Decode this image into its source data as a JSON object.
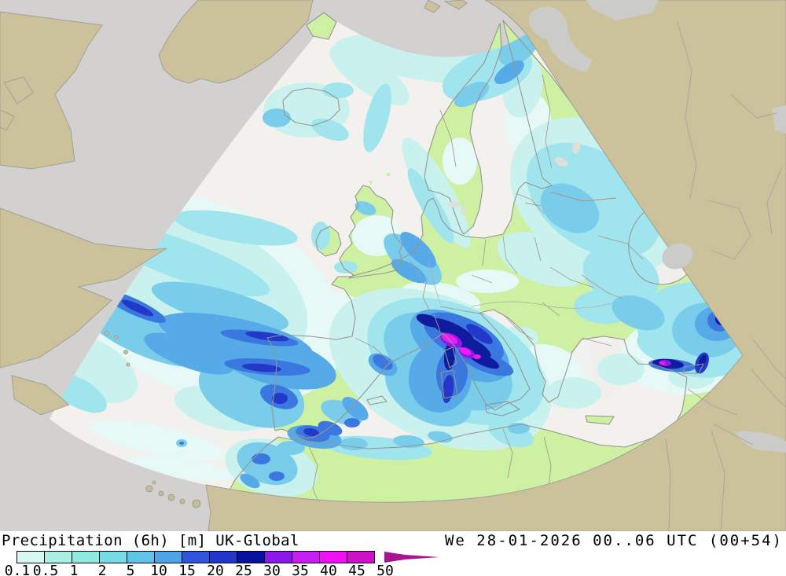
{
  "header": {
    "title_full": "Precipitation (6h) [m] UK-Global",
    "variable": "Precipitation (6h)",
    "units": "[m]",
    "model": "UK-Global"
  },
  "timestamp": {
    "text": "We 28-01-2026 00..06 UTC (00+54)"
  },
  "legend": {
    "values": [
      "0.1",
      "0.5",
      "1",
      "2",
      "5",
      "10",
      "15",
      "20",
      "25",
      "30",
      "35",
      "40",
      "45",
      "50"
    ],
    "colors": [
      "#d9f8f1",
      "#abf1e3",
      "#8feae2",
      "#76dbe5",
      "#60c3e8",
      "#4fa3e8",
      "#2e55dc",
      "#2336cc",
      "#0a11a0",
      "#8c18ea",
      "#c41ef0",
      "#f30ff3",
      "#cd11c4"
    ],
    "arrow_color": "#a8148e"
  },
  "map_colors": {
    "sea_outside_domain": "#d2d1cf",
    "land_outside_domain": "#cbc19b",
    "sea_inside_domain": "#f2f1ed",
    "land_inside_domain": "#cdf0a2",
    "coastline": "#98948e",
    "precip_levels": [
      "#e6f9f6",
      "#c9f2ee",
      "#a0e5ee",
      "#79cdeb",
      "#57aae8",
      "#3a78e0",
      "#2338c8",
      "#101c9e",
      "#8c1ae8",
      "#ee1cee"
    ]
  }
}
